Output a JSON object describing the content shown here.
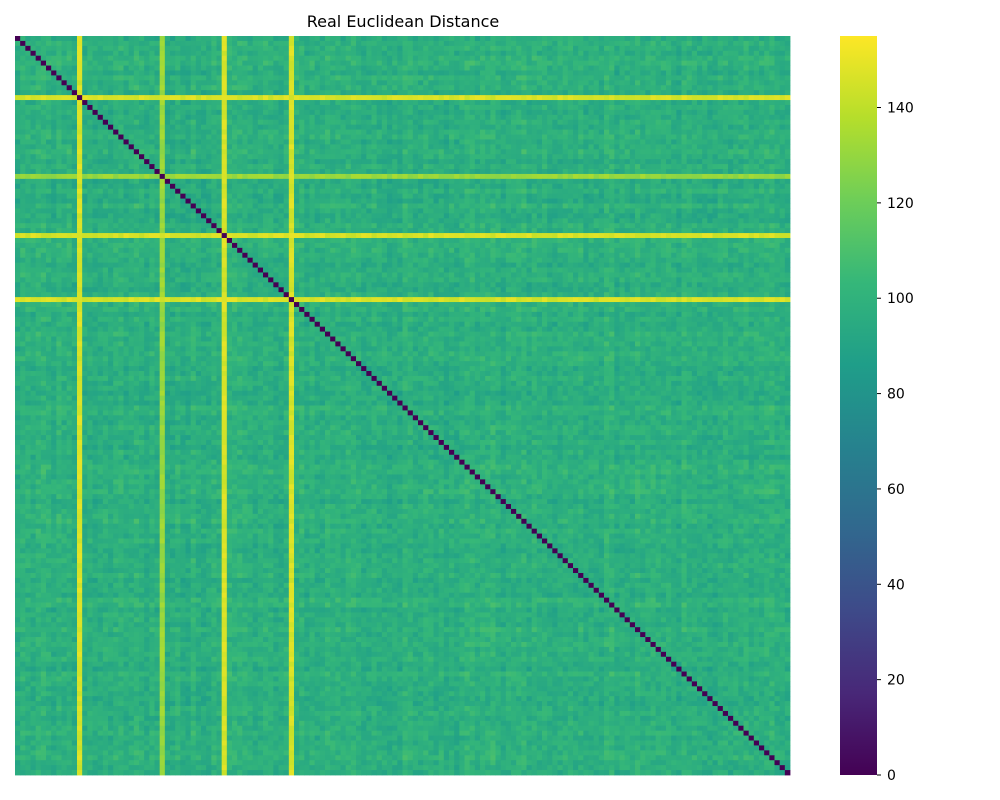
{
  "chart_data": {
    "type": "heatmap",
    "title": "Real Euclidean Distance",
    "xlabel": "",
    "ylabel": "",
    "n": 150,
    "diagonal_value": 0,
    "base_range": [
      85,
      110
    ],
    "bright_indices": [
      [
        12,
        150
      ],
      [
        40,
        150
      ],
      [
        53,
        150
      ],
      [
        28,
        135
      ]
    ],
    "colorbar": {
      "colormap": "viridis",
      "min": 0,
      "max": 155,
      "ticks": [
        "0",
        "20",
        "40",
        "60",
        "80",
        "100",
        "120",
        "140"
      ],
      "tick_values": [
        0,
        20,
        40,
        60,
        80,
        100,
        120,
        140
      ]
    }
  }
}
